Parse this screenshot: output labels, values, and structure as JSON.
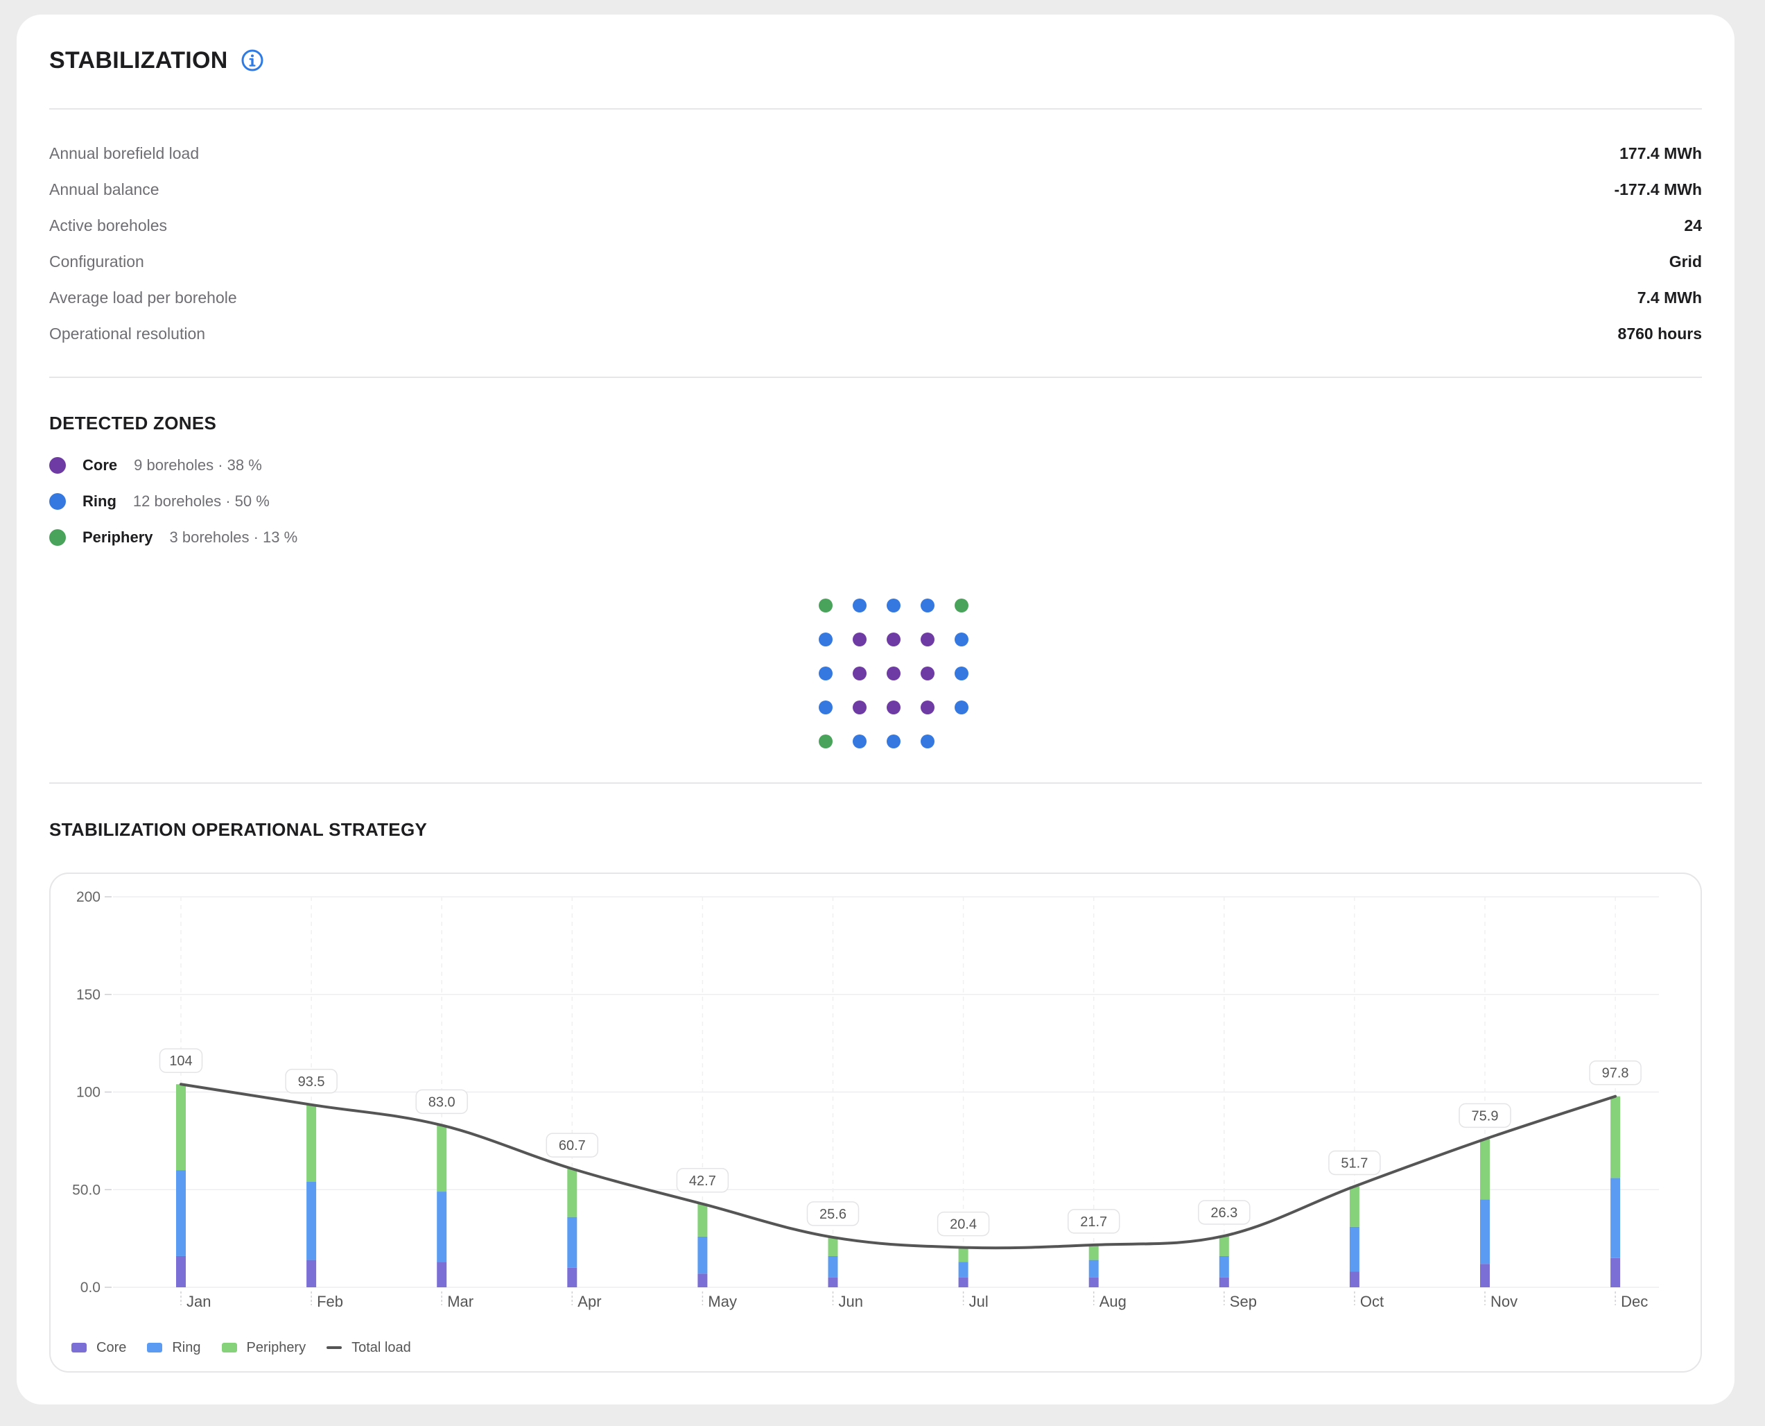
{
  "header": {
    "title": "STABILIZATION",
    "info_icon": "info-icon"
  },
  "stats": [
    {
      "label": "Annual borefield load",
      "value": "177.4 MWh"
    },
    {
      "label": "Annual balance",
      "value": "-177.4 MWh"
    },
    {
      "label": "Active boreholes",
      "value": "24"
    },
    {
      "label": "Configuration",
      "value": "Grid"
    },
    {
      "label": "Average load per borehole",
      "value": "7.4 MWh"
    },
    {
      "label": "Operational resolution",
      "value": "8760 hours"
    }
  ],
  "zones": {
    "title": "DETECTED ZONES",
    "items": [
      {
        "name": "Core",
        "desc": "9 boreholes · 38 %",
        "color": "#6e3aa3"
      },
      {
        "name": "Ring",
        "desc": "12 boreholes · 50 %",
        "color": "#3478e0"
      },
      {
        "name": "Periphery",
        "desc": "3 boreholes · 13 %",
        "color": "#4aa35a"
      }
    ],
    "grid": [
      [
        "Periphery",
        "Ring",
        "Ring",
        "Ring",
        "Periphery"
      ],
      [
        "Ring",
        "Core",
        "Core",
        "Core",
        "Ring"
      ],
      [
        "Ring",
        "Core",
        "Core",
        "Core",
        "Ring"
      ],
      [
        "Ring",
        "Core",
        "Core",
        "Core",
        "Ring"
      ],
      [
        "Periphery",
        "Ring",
        "Ring",
        "Ring"
      ]
    ]
  },
  "strategy": {
    "title": "STABILIZATION OPERATIONAL STRATEGY"
  },
  "chart_data": {
    "type": "bar",
    "stacked": true,
    "categories": [
      "Jan",
      "Feb",
      "Mar",
      "Apr",
      "May",
      "Jun",
      "Jul",
      "Aug",
      "Sep",
      "Oct",
      "Nov",
      "Dec"
    ],
    "series": [
      {
        "name": "Core",
        "color": "#7b6fd6",
        "values": [
          16,
          14,
          13,
          10,
          7,
          5,
          5,
          5,
          5,
          8,
          12,
          15
        ]
      },
      {
        "name": "Ring",
        "color": "#5b9cf2",
        "values": [
          44,
          40,
          36,
          26,
          19,
          11,
          8,
          9,
          11,
          23,
          33,
          41
        ]
      },
      {
        "name": "Periphery",
        "color": "#86d27a",
        "values": [
          44,
          39.5,
          34,
          24.7,
          16.7,
          9.6,
          7.4,
          7.7,
          10.3,
          20.7,
          30.9,
          41.8
        ]
      }
    ],
    "line": {
      "name": "Total load",
      "color": "#555555",
      "values": [
        104,
        93.5,
        83.0,
        60.7,
        42.7,
        25.6,
        20.4,
        21.7,
        26.3,
        51.7,
        75.9,
        97.8
      ]
    },
    "data_labels": [
      "104",
      "93.5",
      "83.0",
      "60.7",
      "42.7",
      "25.6",
      "20.4",
      "21.7",
      "26.3",
      "51.7",
      "75.9",
      "97.8"
    ],
    "y_ticks": [
      0,
      50,
      100,
      150,
      200
    ],
    "y_tick_labels": [
      "0.0",
      "50.0",
      "100",
      "150",
      "200"
    ],
    "ylim": [
      0,
      200
    ],
    "legend_position": "bottom-left",
    "grid": true
  },
  "legend": {
    "core": "Core",
    "ring": "Ring",
    "periphery": "Periphery",
    "total": "Total load"
  }
}
